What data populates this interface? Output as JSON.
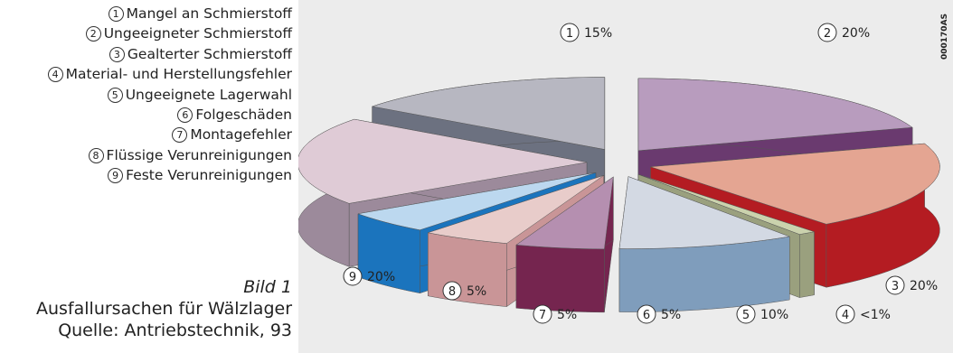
{
  "legend": {
    "items": [
      {
        "num": "1",
        "label": "Mangel an Schmierstoff"
      },
      {
        "num": "2",
        "label": "Ungeeigneter Schmierstoff"
      },
      {
        "num": "3",
        "label": "Gealterter Schmierstoff"
      },
      {
        "num": "4",
        "label": "Material- und Herstellungsfehler"
      },
      {
        "num": "5",
        "label": "Ungeeignete Lagerwahl"
      },
      {
        "num": "6",
        "label": "Folgeschäden"
      },
      {
        "num": "7",
        "label": "Montagefehler"
      },
      {
        "num": "8",
        "label": "Flüssige Verunreinigungen"
      },
      {
        "num": "9",
        "label": "Feste Verunreinigungen"
      }
    ]
  },
  "caption": {
    "label": "Bild 1",
    "title": "Ausfallursachen für Wälzlager",
    "source": "Quelle: Antriebstechnik, 93"
  },
  "figure_code": "000170AS",
  "chart_data": {
    "type": "pie",
    "title": "",
    "categories": [
      "1",
      "2",
      "3",
      "4",
      "5",
      "6",
      "7",
      "8",
      "9"
    ],
    "values": [
      15,
      20,
      20,
      1,
      10,
      5,
      5,
      5,
      20
    ],
    "value_labels": [
      "15%",
      "20%",
      "20%",
      "<1%",
      "10%",
      "5%",
      "5%",
      "5%",
      "20%"
    ],
    "colors": {
      "top": [
        "#b7b7c1",
        "#b89cbe",
        "#e4a592",
        "#cbd2ad",
        "#d3d9e3",
        "#b58fb0",
        "#e8ccca",
        "#bcd8ef",
        "#dfcbd6"
      ],
      "side": [
        "#6c7180",
        "#6a3a6f",
        "#b41c22",
        "#9aa07e",
        "#7f9dbc",
        "#75254f",
        "#c99597",
        "#1b74bd",
        "#9c8a9b"
      ]
    },
    "exploded": true,
    "style": "3d"
  }
}
